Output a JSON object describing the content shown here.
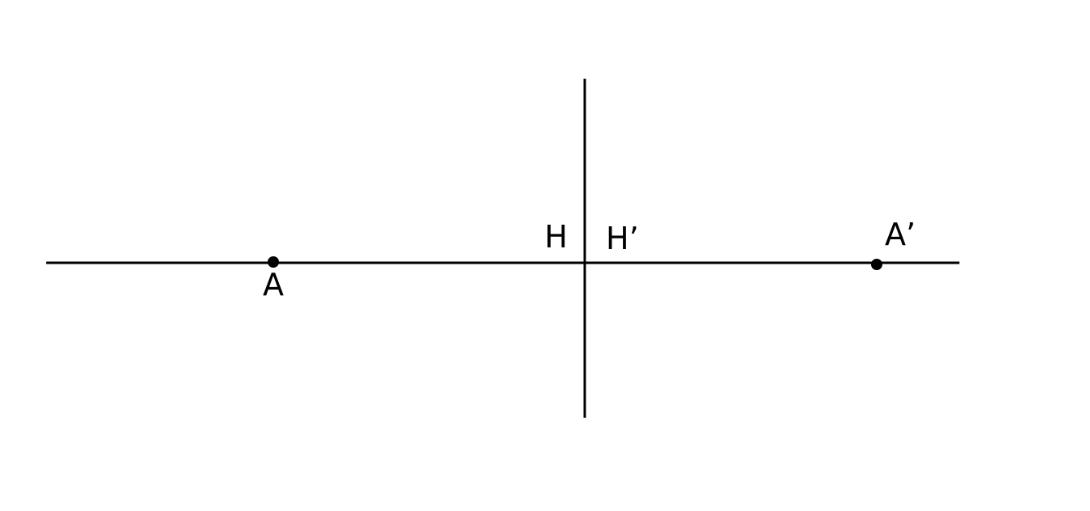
{
  "diagram": {
    "labels": {
      "point_a": "A",
      "point_a_prime": "A’",
      "point_h": "H",
      "point_h_prime": "H’"
    },
    "colors": {
      "stroke": "#000000",
      "background": "#ffffff"
    }
  }
}
